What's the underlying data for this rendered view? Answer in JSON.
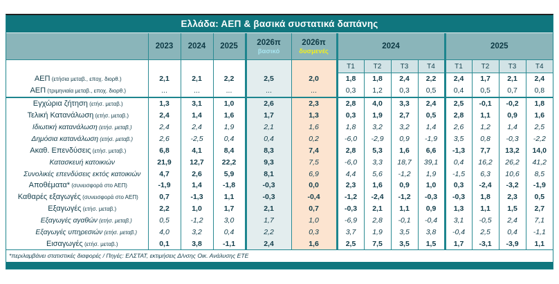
{
  "title": "Ελλάδα: ΑΕΠ & βασικά συστατικά δαπάνης",
  "colors": {
    "title_bg": "#10767e",
    "header_bg": "#8ab5ba",
    "quarter_header_bg": "#d2e3e6",
    "basic_col_bg": "#e3edee",
    "adverse_col_bg": "#fce4d0",
    "border": "#1d858e",
    "text": "#113c49",
    "basic_label_color": "#a9e4ef",
    "adverse_label_color": "#f2ef1d"
  },
  "header": {
    "annual_years": [
      "2023",
      "2024",
      "2025"
    ],
    "scenario_cols": [
      {
        "year": "2026π",
        "label": "βασικό"
      },
      {
        "year": "2026π",
        "label": "δυσμενές"
      }
    ],
    "quarter_groups": [
      {
        "year": "2024",
        "quarters": [
          "T1",
          "T2",
          "T3",
          "T4"
        ]
      },
      {
        "year": "2025",
        "quarters": [
          "T1",
          "T2",
          "T3",
          "T4"
        ]
      }
    ]
  },
  "table": {
    "columns": [
      "2023",
      "2024",
      "2025",
      "2026π βασικό",
      "2026π δυσμενές",
      "2024 T1",
      "2024 T2",
      "2024 T3",
      "2024 T4",
      "2025 T1",
      "2025 T2",
      "2025 T3",
      "2025 T4"
    ],
    "rows": [
      {
        "label": "ΑΕΠ",
        "note": "(ετήσια μεταβ., εποχ. διορθ.)",
        "indent": 0,
        "italic": false,
        "separator_after": false,
        "values": [
          "2,1",
          "2,1",
          "2,2",
          "2,5",
          "2,0",
          "1,8",
          "1,8",
          "2,4",
          "2,2",
          "2,4",
          "1,7",
          "2,1",
          "2,4"
        ],
        "value_styles": "b"
      },
      {
        "label": "ΑΕΠ",
        "note": "(τριμηνιαία μεταβ., εποχ. διορθ.)",
        "indent": 0,
        "italic": false,
        "separator_after": true,
        "values": [
          "...",
          "...",
          "...",
          "...",
          "...",
          "0,3",
          "1,2",
          "0,3",
          "0,5",
          "0,4",
          "0,5",
          "0,7",
          "0,8"
        ],
        "value_styles": "n"
      },
      {
        "label": "Εγχώρια ζήτηση",
        "note": "(ετήσ. μεταβ.)",
        "indent": 0,
        "italic": false,
        "separator_after": false,
        "values": [
          "1,3",
          "3,1",
          "1,0",
          "2,6",
          "2,3",
          "2,8",
          "4,0",
          "3,3",
          "2,4",
          "2,5",
          "-0,1",
          "-0,2",
          "1,8"
        ],
        "value_styles": "b"
      },
      {
        "label": "Τελική Κατανάλωση",
        "note": "(ετήσ. μεταβ.)",
        "indent": 0,
        "italic": false,
        "separator_after": false,
        "values": [
          "2,4",
          "1,4",
          "1,6",
          "1,7",
          "1,3",
          "0,3",
          "1,9",
          "2,7",
          "0,5",
          "2,8",
          "1,1",
          "0,9",
          "1,6"
        ],
        "value_styles": "b"
      },
      {
        "label": "Ιδιωτική κατανάλωση",
        "note": "(ετήσ. μεταβ.)",
        "indent": 1,
        "italic": true,
        "separator_after": false,
        "values": [
          "2,4",
          "2,4",
          "1,9",
          "2,1",
          "1,6",
          "1,8",
          "3,2",
          "3,2",
          "1,4",
          "2,6",
          "1,2",
          "1,4",
          "2,5"
        ],
        "value_styles": "i"
      },
      {
        "label": "Δημόσια κατανάλωση",
        "note": "(ετήσ. μεταβ.)",
        "indent": 1,
        "italic": true,
        "separator_after": false,
        "values": [
          "2,6",
          "-2,5",
          "0,4",
          "0,4",
          "0,2",
          "-6,0",
          "-2,9",
          "0,9",
          "-1,9",
          "3,5",
          "0,8",
          "-0,3",
          "-2,2"
        ],
        "value_styles": "i"
      },
      {
        "label": "Ακαθ. Επενδύσεις",
        "note": "(ετήσ. μεταβ.)",
        "indent": 0,
        "italic": false,
        "separator_after": false,
        "values": [
          "6,8",
          "4,1",
          "8,4",
          "8,3",
          "7,4",
          "2,8",
          "5,3",
          "1,6",
          "6,6",
          "-1,3",
          "7,7",
          "13,2",
          "14,0"
        ],
        "value_styles": "b"
      },
      {
        "label": "Κατασκευή κατοικιών",
        "note": "",
        "indent": 1,
        "italic": true,
        "separator_after": false,
        "values": [
          "21,9",
          "12,7",
          "22,2",
          "9,3",
          "7,5",
          "-6,0",
          "3,3",
          "18,7",
          "39,1",
          "0,4",
          "16,2",
          "26,2",
          "41,2"
        ],
        "value_styles": [
          "b",
          "b",
          "b",
          "b",
          "i",
          "i",
          "i",
          "i",
          "i",
          "i",
          "i",
          "i",
          "i"
        ]
      },
      {
        "label": "Συνολικές επενδύσεις εκτός κατοικιών",
        "note": "",
        "indent": 1,
        "italic": true,
        "separator_after": false,
        "values": [
          "4,7",
          "2,6",
          "5,9",
          "8,1",
          "6,9",
          "4,4",
          "5,6",
          "-1,2",
          "1,9",
          "-1,5",
          "6,3",
          "10,6",
          "8,5"
        ],
        "value_styles": [
          "b",
          "b",
          "b",
          "b",
          "i",
          "i",
          "i",
          "i",
          "i",
          "i",
          "i",
          "i",
          "i"
        ]
      },
      {
        "label": "Αποθέματα*",
        "note": "(συνεισφορά στο ΑΕΠ)",
        "indent": 0,
        "italic": false,
        "separator_after": false,
        "values": [
          "-1,9",
          "1,4",
          "-1,8",
          "-0,3",
          "0,0",
          "2,3",
          "1,6",
          "0,9",
          "1,0",
          "0,3",
          "-2,4",
          "-3,2",
          "-1,9"
        ],
        "value_styles": "b"
      },
      {
        "label": "Καθαρές εξαγωγές",
        "note": "(συνεισφορά στο ΑΕΠ)",
        "indent": 0,
        "italic": false,
        "separator_after": false,
        "values": [
          "0,7",
          "-1,3",
          "1,1",
          "-0,3",
          "-0,4",
          "-1,2",
          "-2,4",
          "-1,2",
          "-0,3",
          "-0,3",
          "1,8",
          "2,3",
          "0,5"
        ],
        "value_styles": "b"
      },
      {
        "label": "Εξαγωγές",
        "note": "(ετήσ. μεταβ.)",
        "indent": 1,
        "italic": false,
        "separator_after": false,
        "values": [
          "2,2",
          "1,0",
          "1,7",
          "2,1",
          "0,7",
          "-0,3",
          "2,1",
          "1,1",
          "0,9",
          "1,3",
          "1,1",
          "1,5",
          "2,7"
        ],
        "value_styles": "b"
      },
      {
        "label": "Εξαγωγές αγαθών",
        "note": "(ετήσ. μεταβ.)",
        "indent": 2,
        "italic": true,
        "separator_after": false,
        "values": [
          "0,5",
          "-1,2",
          "3,0",
          "1,7",
          "1,0",
          "-6,9",
          "2,8",
          "-0,1",
          "-0,4",
          "3,1",
          "-0,5",
          "2,4",
          "7,1"
        ],
        "value_styles": "i"
      },
      {
        "label": "Εξαγωγές υπηρεσιών",
        "note": "(ετήσ. μεταβ.)",
        "indent": 2,
        "italic": true,
        "separator_after": false,
        "values": [
          "4,0",
          "3,2",
          "0,4",
          "2,2",
          "0,3",
          "3,7",
          "1,9",
          "3,5",
          "3,8",
          "-0,4",
          "2,5",
          "0,4",
          "-1,1"
        ],
        "value_styles": "i"
      },
      {
        "label": "Εισαγωγές",
        "note": "(ετήσ. μεταβ.)",
        "indent": 1,
        "italic": false,
        "separator_after": false,
        "values": [
          "0,1",
          "3,8",
          "-1,1",
          "2,4",
          "1,6",
          "2,5",
          "7,5",
          "3,5",
          "1,5",
          "1,7",
          "-3,1",
          "-3,9",
          "1,1"
        ],
        "value_styles": "b"
      }
    ]
  },
  "footnote": "*περιλαμβάνει στατιστικές διαφορές  / Πηγές: ΕΛΣΤΑΤ, εκτιμήσεις Δ/νσης Οικ. Ανάλυσης ΕΤΕ"
}
